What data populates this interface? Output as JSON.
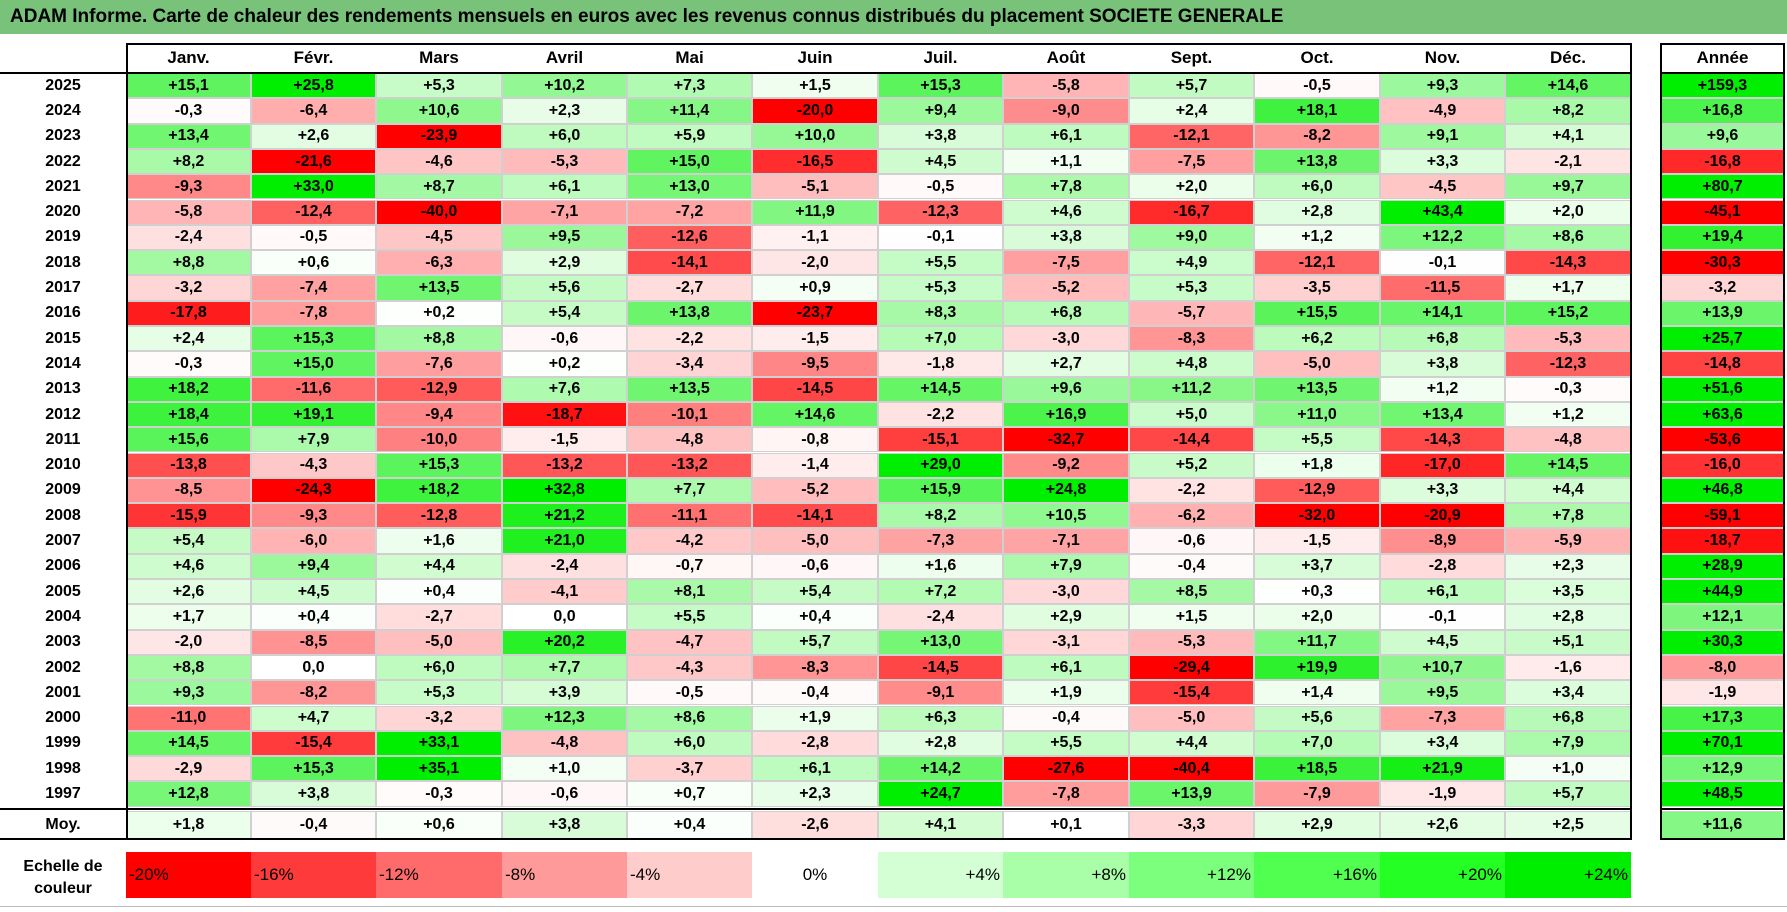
{
  "title": "ADAM Informe. Carte de chaleur des rendements mensuels en euros avec les revenus connus distribués du placement SOCIETE GENERALE",
  "chart_data": {
    "type": "heatmap",
    "title": "ADAM Informe. Carte de chaleur des rendements mensuels en euros avec les revenus connus distribués du placement SOCIETE GENERALE",
    "columns": [
      "Janv.",
      "Févr.",
      "Mars",
      "Avril",
      "Mai",
      "Juin",
      "Juil.",
      "Août",
      "Sept.",
      "Oct.",
      "Nov.",
      "Déc."
    ],
    "annual_header": "Année",
    "rows": [
      {
        "year": "2025",
        "values": [
          "+15,1",
          "+25,8",
          "+5,3",
          "+10,2",
          "+7,3",
          "+1,5",
          "+15,3",
          "-5,8",
          "+5,7",
          "-0,5",
          "+9,3",
          "+14,6"
        ],
        "annual": "+159,3"
      },
      {
        "year": "2024",
        "values": [
          "-0,3",
          "-6,4",
          "+10,6",
          "+2,3",
          "+11,4",
          "-20,0",
          "+9,4",
          "-9,0",
          "+2,4",
          "+18,1",
          "-4,9",
          "+8,2"
        ],
        "annual": "+16,8"
      },
      {
        "year": "2023",
        "values": [
          "+13,4",
          "+2,6",
          "-23,9",
          "+6,0",
          "+5,9",
          "+10,0",
          "+3,8",
          "+6,1",
          "-12,1",
          "-8,2",
          "+9,1",
          "+4,1"
        ],
        "annual": "+9,6"
      },
      {
        "year": "2022",
        "values": [
          "+8,2",
          "-21,6",
          "-4,6",
          "-5,3",
          "+15,0",
          "-16,5",
          "+4,5",
          "+1,1",
          "-7,5",
          "+13,8",
          "+3,3",
          "-2,1"
        ],
        "annual": "-16,8"
      },
      {
        "year": "2021",
        "values": [
          "-9,3",
          "+33,0",
          "+8,7",
          "+6,1",
          "+13,0",
          "-5,1",
          "-0,5",
          "+7,8",
          "+2,0",
          "+6,0",
          "-4,5",
          "+9,7"
        ],
        "annual": "+80,7"
      },
      {
        "year": "2020",
        "values": [
          "-5,8",
          "-12,4",
          "-40,0",
          "-7,1",
          "-7,2",
          "+11,9",
          "-12,3",
          "+4,6",
          "-16,7",
          "+2,8",
          "+43,4",
          "+2,0"
        ],
        "annual": "-45,1"
      },
      {
        "year": "2019",
        "values": [
          "-2,4",
          "-0,5",
          "-4,5",
          "+9,5",
          "-12,6",
          "-1,1",
          "-0,1",
          "+3,8",
          "+9,0",
          "+1,2",
          "+12,2",
          "+8,6"
        ],
        "annual": "+19,4"
      },
      {
        "year": "2018",
        "values": [
          "+8,8",
          "+0,6",
          "-6,3",
          "+2,9",
          "-14,1",
          "-2,0",
          "+5,5",
          "-7,5",
          "+4,9",
          "-12,1",
          "-0,1",
          "-14,3"
        ],
        "annual": "-30,3"
      },
      {
        "year": "2017",
        "values": [
          "-3,2",
          "-7,4",
          "+13,5",
          "+5,6",
          "-2,7",
          "+0,9",
          "+5,3",
          "-5,2",
          "+5,3",
          "-3,5",
          "-11,5",
          "+1,7"
        ],
        "annual": "-3,2"
      },
      {
        "year": "2016",
        "values": [
          "-17,8",
          "-7,8",
          "+0,2",
          "+5,4",
          "+13,8",
          "-23,7",
          "+8,3",
          "+6,8",
          "-5,7",
          "+15,5",
          "+14,1",
          "+15,2"
        ],
        "annual": "+13,9"
      },
      {
        "year": "2015",
        "values": [
          "+2,4",
          "+15,3",
          "+8,8",
          "-0,6",
          "-2,2",
          "-1,5",
          "+7,0",
          "-3,0",
          "-8,3",
          "+6,2",
          "+6,8",
          "-5,3"
        ],
        "annual": "+25,7"
      },
      {
        "year": "2014",
        "values": [
          "-0,3",
          "+15,0",
          "-7,6",
          "+0,2",
          "-3,4",
          "-9,5",
          "-1,8",
          "+2,7",
          "+4,8",
          "-5,0",
          "+3,8",
          "-12,3"
        ],
        "annual": "-14,8"
      },
      {
        "year": "2013",
        "values": [
          "+18,2",
          "-11,6",
          "-12,9",
          "+7,6",
          "+13,5",
          "-14,5",
          "+14,5",
          "+9,6",
          "+11,2",
          "+13,5",
          "+1,2",
          "-0,3"
        ],
        "annual": "+51,6"
      },
      {
        "year": "2012",
        "values": [
          "+18,4",
          "+19,1",
          "-9,4",
          "-18,7",
          "-10,1",
          "+14,6",
          "-2,2",
          "+16,9",
          "+5,0",
          "+11,0",
          "+13,4",
          "+1,2"
        ],
        "annual": "+63,6"
      },
      {
        "year": "2011",
        "values": [
          "+15,6",
          "+7,9",
          "-10,0",
          "-1,5",
          "-4,8",
          "-0,8",
          "-15,1",
          "-32,7",
          "-14,4",
          "+5,5",
          "-14,3",
          "-4,8"
        ],
        "annual": "-53,6"
      },
      {
        "year": "2010",
        "values": [
          "-13,8",
          "-4,3",
          "+15,3",
          "-13,2",
          "-13,2",
          "-1,4",
          "+29,0",
          "-9,2",
          "+5,2",
          "+1,8",
          "-17,0",
          "+14,5"
        ],
        "annual": "-16,0"
      },
      {
        "year": "2009",
        "values": [
          "-8,5",
          "-24,3",
          "+18,2",
          "+32,8",
          "+7,7",
          "-5,2",
          "+15,9",
          "+24,8",
          "-2,2",
          "-12,9",
          "+3,3",
          "+4,4"
        ],
        "annual": "+46,8"
      },
      {
        "year": "2008",
        "values": [
          "-15,9",
          "-9,3",
          "-12,8",
          "+21,2",
          "-11,1",
          "-14,1",
          "+8,2",
          "+10,5",
          "-6,2",
          "-32,0",
          "-20,9",
          "+7,8"
        ],
        "annual": "-59,1"
      },
      {
        "year": "2007",
        "values": [
          "+5,4",
          "-6,0",
          "+1,6",
          "+21,0",
          "-4,2",
          "-5,0",
          "-7,3",
          "-7,1",
          "-0,6",
          "-1,5",
          "-8,9",
          "-5,9"
        ],
        "annual": "-18,7"
      },
      {
        "year": "2006",
        "values": [
          "+4,6",
          "+9,4",
          "+4,4",
          "-2,4",
          "-0,7",
          "-0,6",
          "+1,6",
          "+7,9",
          "-0,4",
          "+3,7",
          "-2,8",
          "+2,3"
        ],
        "annual": "+28,9"
      },
      {
        "year": "2005",
        "values": [
          "+2,6",
          "+4,5",
          "+0,4",
          "-4,1",
          "+8,1",
          "+5,4",
          "+7,2",
          "-3,0",
          "+8,5",
          "+0,3",
          "+6,1",
          "+3,5"
        ],
        "annual": "+44,9"
      },
      {
        "year": "2004",
        "values": [
          "+1,7",
          "+0,4",
          "-2,7",
          "0,0",
          "+5,5",
          "+0,4",
          "-2,4",
          "+2,9",
          "+1,5",
          "+2,0",
          "-0,1",
          "+2,8"
        ],
        "annual": "+12,1"
      },
      {
        "year": "2003",
        "values": [
          "-2,0",
          "-8,5",
          "-5,0",
          "+20,2",
          "-4,7",
          "+5,7",
          "+13,0",
          "-3,1",
          "-5,3",
          "+11,7",
          "+4,5",
          "+5,1"
        ],
        "annual": "+30,3"
      },
      {
        "year": "2002",
        "values": [
          "+8,8",
          "0,0",
          "+6,0",
          "+7,7",
          "-4,3",
          "-8,3",
          "-14,5",
          "+6,1",
          "-29,4",
          "+19,9",
          "+10,7",
          "-1,6"
        ],
        "annual": "-8,0"
      },
      {
        "year": "2001",
        "values": [
          "+9,3",
          "-8,2",
          "+5,3",
          "+3,9",
          "-0,5",
          "-0,4",
          "-9,1",
          "+1,9",
          "-15,4",
          "+1,4",
          "+9,5",
          "+3,4"
        ],
        "annual": "-1,9"
      },
      {
        "year": "2000",
        "values": [
          "-11,0",
          "+4,7",
          "-3,2",
          "+12,3",
          "+8,6",
          "+1,9",
          "+6,3",
          "-0,4",
          "-5,0",
          "+5,6",
          "-7,3",
          "+6,8"
        ],
        "annual": "+17,3"
      },
      {
        "year": "1999",
        "values": [
          "+14,5",
          "-15,4",
          "+33,1",
          "-4,8",
          "+6,0",
          "-2,8",
          "+2,8",
          "+5,5",
          "+4,4",
          "+7,0",
          "+3,4",
          "+7,9"
        ],
        "annual": "+70,1"
      },
      {
        "year": "1998",
        "values": [
          "-2,9",
          "+15,3",
          "+35,1",
          "+1,0",
          "-3,7",
          "+6,1",
          "+14,2",
          "-27,6",
          "-40,4",
          "+18,5",
          "+21,9",
          "+1,0"
        ],
        "annual": "+12,9"
      },
      {
        "year": "1997",
        "values": [
          "+12,8",
          "+3,8",
          "-0,3",
          "-0,6",
          "+0,7",
          "+2,3",
          "+24,7",
          "-7,8",
          "+13,9",
          "-7,9",
          "-1,9",
          "+5,7"
        ],
        "annual": "+48,5"
      }
    ],
    "average_row": {
      "label": "Moy.",
      "values": [
        "+1,8",
        "-0,4",
        "+0,6",
        "+3,8",
        "+0,4",
        "-2,6",
        "+4,1",
        "+0,1",
        "-3,3",
        "+2,9",
        "+2,6",
        "+2,5"
      ],
      "annual": "+11,6"
    },
    "legend": {
      "label": "Echelle de\ncouleur",
      "stops": [
        {
          "text": "-20%",
          "value": -20,
          "color": "#ff0000"
        },
        {
          "text": "-16%",
          "value": -16,
          "color": "#ff3a3a"
        },
        {
          "text": "-12%",
          "value": -12,
          "color": "#ff6a6a"
        },
        {
          "text": "-8%",
          "value": -8,
          "color": "#ff9a9a"
        },
        {
          "text": "-4%",
          "value": -4,
          "color": "#ffcccc"
        },
        {
          "text": "0%",
          "value": 0,
          "color": "#ffffff"
        },
        {
          "text": "+4%",
          "value": 4,
          "color": "#d4ffd4"
        },
        {
          "text": "+8%",
          "value": 8,
          "color": "#a8ffa8"
        },
        {
          "text": "+12%",
          "value": 12,
          "color": "#7cff7c"
        },
        {
          "text": "+16%",
          "value": 16,
          "color": "#50ff50"
        },
        {
          "text": "+20%",
          "value": 20,
          "color": "#24ff24"
        },
        {
          "text": "+24%",
          "value": 24,
          "color": "#00ee00"
        }
      ]
    }
  }
}
